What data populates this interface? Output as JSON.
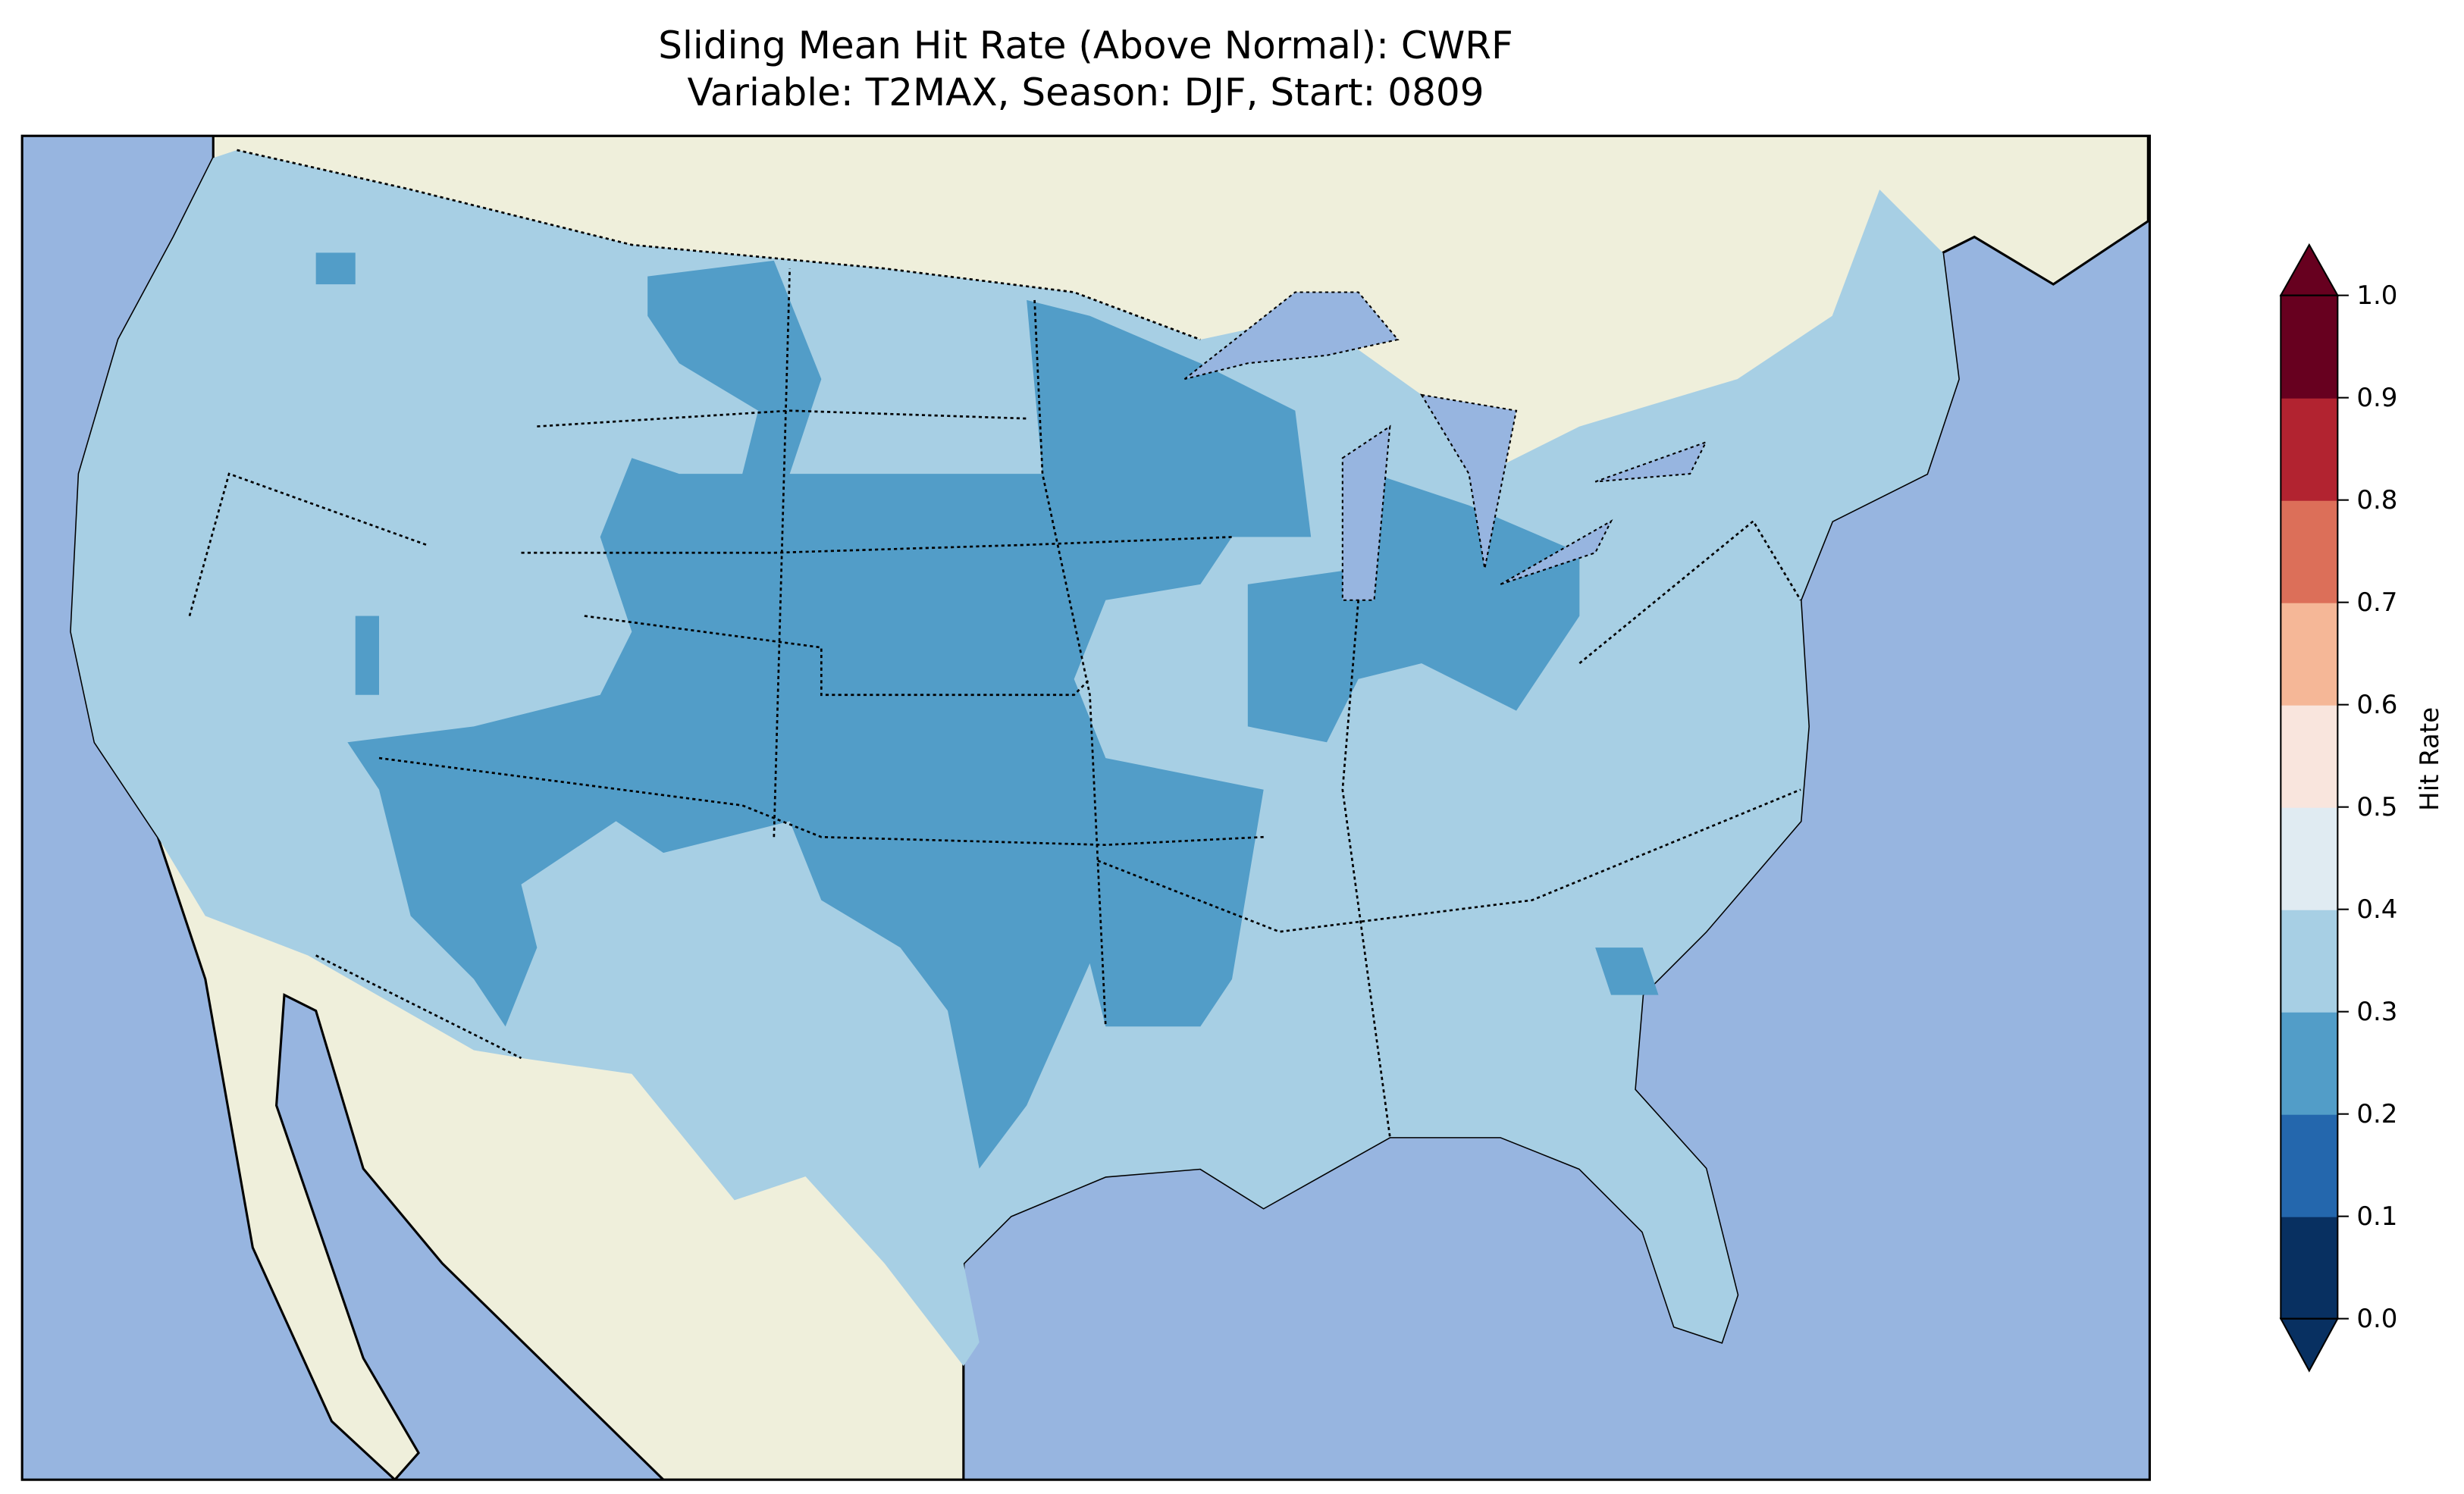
{
  "title": {
    "line1": "Sliding Mean Hit Rate (Above Normal): CWRF",
    "line2": "Variable: T2MAX, Season: DJF, Start: 0809"
  },
  "map": {
    "colors": {
      "ocean": "#97b5e0",
      "land": "#efefdb",
      "lakes": "#97b5e0",
      "border": "#000000"
    },
    "legend_note": "Most of the contiguous US falls in the 0.3–0.4 bin; the central plains, upper Midwest, Ohio Valley and parts of the Southwest fall in the 0.2–0.3 bin"
  },
  "colorbar": {
    "label": "Hit Rate",
    "ticks": [
      "0.0",
      "0.1",
      "0.2",
      "0.3",
      "0.4",
      "0.5",
      "0.6",
      "0.7",
      "0.8",
      "0.9",
      "1.0"
    ],
    "colors": [
      "#083061",
      "#2467ad",
      "#529dc8",
      "#a7cfe4",
      "#e0ebf2",
      "#f9e5dd",
      "#f5b797",
      "#dc6f59",
      "#b22330",
      "#67001f"
    ],
    "extend": "both"
  }
}
